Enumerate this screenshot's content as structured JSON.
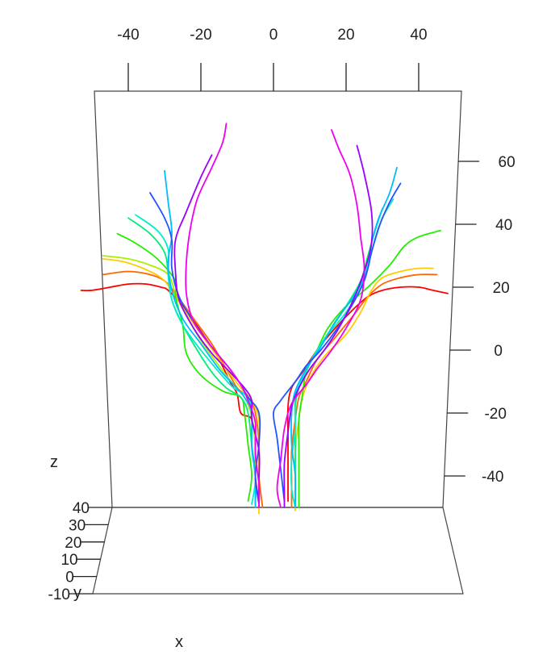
{
  "chart_data": {
    "type": "line",
    "title": "",
    "x_axis": {
      "label": "x",
      "ticks": [
        -40,
        -20,
        0,
        20,
        40
      ],
      "tick_labels": [
        "-40",
        "-20",
        "0",
        "20",
        "40"
      ]
    },
    "y_axis": {
      "label": "y",
      "ticks": [
        -10,
        0,
        10,
        20,
        30,
        40
      ],
      "tick_labels": [
        "-10",
        "0",
        "10",
        "20",
        "30",
        "40"
      ]
    },
    "z_axis": {
      "label": "z",
      "ticks": [
        -40,
        -20,
        0,
        20,
        40,
        60
      ],
      "tick_labels": [
        "-40",
        "-20",
        "0",
        "20",
        "40",
        "60"
      ]
    },
    "grid": false,
    "legend": "none",
    "series": [
      {
        "color": "#ff0000",
        "points": [
          [
            -53,
            19
          ],
          [
            -50,
            19
          ],
          [
            -45,
            20
          ],
          [
            -40,
            21
          ],
          [
            -35,
            21
          ],
          [
            -31,
            20
          ],
          [
            -29,
            19
          ],
          [
            -25,
            14
          ],
          [
            -20,
            6
          ],
          [
            -15,
            -3
          ],
          [
            -12,
            -10
          ],
          [
            -10,
            -14
          ],
          [
            -9,
            -20
          ],
          [
            -6,
            -22
          ],
          [
            -5,
            -30
          ],
          [
            -5,
            -40
          ],
          [
            -4,
            -48
          ]
        ]
      },
      {
        "color": "#ff6600",
        "points": [
          [
            -47,
            24
          ],
          [
            -40,
            25
          ],
          [
            -34,
            24
          ],
          [
            -30,
            22
          ],
          [
            -27,
            18
          ],
          [
            -22,
            10
          ],
          [
            -17,
            2
          ],
          [
            -13,
            -6
          ],
          [
            -10,
            -12
          ],
          [
            -7,
            -15
          ],
          [
            -5,
            -20
          ],
          [
            -4,
            -30
          ],
          [
            -4,
            -40
          ],
          [
            -3,
            -50
          ]
        ]
      },
      {
        "color": "#ffcc00",
        "points": [
          [
            -47,
            29
          ],
          [
            -41,
            28
          ],
          [
            -34,
            25
          ],
          [
            -30,
            22
          ],
          [
            -27,
            17
          ],
          [
            -23,
            10
          ],
          [
            -18,
            2
          ],
          [
            -13,
            -6
          ],
          [
            -9,
            -12
          ],
          [
            -6,
            -16
          ],
          [
            -4,
            -22
          ],
          [
            -4,
            -32
          ],
          [
            -4,
            -42
          ],
          [
            -4,
            -52
          ]
        ]
      },
      {
        "color": "#aaee00",
        "points": [
          [
            -47,
            30
          ],
          [
            -40,
            29
          ],
          [
            -34,
            27
          ],
          [
            -29,
            24
          ],
          [
            -27,
            18
          ],
          [
            -24,
            11
          ],
          [
            -20,
            3
          ],
          [
            -15,
            -5
          ],
          [
            -11,
            -11
          ],
          [
            -8,
            -15
          ],
          [
            -6,
            -21
          ],
          [
            -5,
            -31
          ],
          [
            -5,
            -41
          ],
          [
            -5,
            -50
          ]
        ]
      },
      {
        "color": "#22ee00",
        "points": [
          [
            -43,
            37
          ],
          [
            -38,
            34
          ],
          [
            -32,
            29
          ],
          [
            -27,
            22
          ],
          [
            -27,
            17
          ],
          [
            -25,
            8
          ],
          [
            -24,
            -1
          ],
          [
            -20,
            -8
          ],
          [
            -14,
            -13
          ],
          [
            -9,
            -15
          ],
          [
            -8,
            -20
          ],
          [
            -7,
            -30
          ],
          [
            -6,
            -40
          ],
          [
            -7,
            -48
          ]
        ]
      },
      {
        "color": "#00ee77",
        "points": [
          [
            -40,
            42
          ],
          [
            -34,
            37
          ],
          [
            -30,
            31
          ],
          [
            -29,
            24
          ],
          [
            -28,
            16
          ],
          [
            -25,
            8
          ],
          [
            -21,
            0
          ],
          [
            -17,
            -7
          ],
          [
            -13,
            -12
          ],
          [
            -9,
            -15
          ],
          [
            -7,
            -20
          ],
          [
            -6,
            -30
          ],
          [
            -5,
            -40
          ],
          [
            -5,
            -49
          ]
        ]
      },
      {
        "color": "#00eecc",
        "points": [
          [
            -38,
            43
          ],
          [
            -32,
            38
          ],
          [
            -29,
            32
          ],
          [
            -29,
            24
          ],
          [
            -28,
            16
          ],
          [
            -25,
            8
          ],
          [
            -20,
            0
          ],
          [
            -15,
            -7
          ],
          [
            -11,
            -12
          ],
          [
            -7,
            -15
          ],
          [
            -6,
            -21
          ],
          [
            -6,
            -31
          ],
          [
            -5,
            -41
          ],
          [
            -6,
            -49
          ]
        ]
      },
      {
        "color": "#00bbff",
        "points": [
          [
            -30,
            57
          ],
          [
            -29,
            47
          ],
          [
            -28,
            37
          ],
          [
            -29,
            28
          ],
          [
            -28,
            19
          ],
          [
            -25,
            10
          ],
          [
            -20,
            2
          ],
          [
            -15,
            -6
          ],
          [
            -11,
            -11
          ],
          [
            -8,
            -15
          ],
          [
            -6,
            -20
          ],
          [
            -6,
            -30
          ],
          [
            -5,
            -40
          ],
          [
            -5,
            -50
          ]
        ]
      },
      {
        "color": "#2255ff",
        "points": [
          [
            -34,
            50
          ],
          [
            -30,
            42
          ],
          [
            -28,
            35
          ],
          [
            -28,
            26
          ],
          [
            -26,
            17
          ],
          [
            -22,
            9
          ],
          [
            -17,
            1
          ],
          [
            -12,
            -6
          ],
          [
            -9,
            -11
          ],
          [
            -7,
            -15
          ],
          [
            -4,
            -20
          ],
          [
            -4,
            -30
          ],
          [
            -5,
            -40
          ],
          [
            -4,
            -49
          ]
        ]
      },
      {
        "color": "#9900ff",
        "points": [
          [
            -17,
            62
          ],
          [
            -20,
            55
          ],
          [
            -24,
            44
          ],
          [
            -27,
            35
          ],
          [
            -27,
            25
          ],
          [
            -26,
            16
          ],
          [
            -22,
            7
          ],
          [
            -17,
            -1
          ],
          [
            -12,
            -7
          ],
          [
            -8,
            -12
          ],
          [
            -6,
            -16
          ],
          [
            -6,
            -22
          ],
          [
            -4,
            -32
          ],
          [
            -4,
            -42
          ],
          [
            -4,
            -50
          ]
        ]
      },
      {
        "color": "#ee00ee",
        "points": [
          [
            -13,
            72
          ],
          [
            -14,
            66
          ],
          [
            -17,
            58
          ],
          [
            -21,
            48
          ],
          [
            -23,
            38
          ],
          [
            -24,
            28
          ],
          [
            -24,
            18
          ],
          [
            -22,
            9
          ],
          [
            -17,
            1
          ],
          [
            -12,
            -6
          ],
          [
            -9,
            -11
          ],
          [
            -7,
            -16
          ],
          [
            -5,
            -23
          ],
          [
            -5,
            -33
          ],
          [
            -4,
            -43
          ],
          [
            -4,
            -50
          ]
        ]
      },
      {
        "color": "#ff0000",
        "points": [
          [
            48,
            18
          ],
          [
            44,
            19
          ],
          [
            40,
            20
          ],
          [
            35,
            20
          ],
          [
            30,
            19
          ],
          [
            26,
            17
          ],
          [
            22,
            13
          ],
          [
            17,
            7
          ],
          [
            12,
            0
          ],
          [
            8,
            -7
          ],
          [
            5,
            -12
          ],
          [
            4,
            -18
          ],
          [
            4,
            -28
          ],
          [
            4,
            -38
          ],
          [
            4,
            -48
          ]
        ]
      },
      {
        "color": "#ff6600",
        "points": [
          [
            45,
            24
          ],
          [
            40,
            24
          ],
          [
            35,
            23
          ],
          [
            30,
            21
          ],
          [
            26,
            17
          ],
          [
            22,
            11
          ],
          [
            17,
            4
          ],
          [
            12,
            -3
          ],
          [
            9,
            -10
          ],
          [
            7,
            -15
          ],
          [
            6,
            -22
          ],
          [
            5,
            -32
          ],
          [
            5,
            -42
          ],
          [
            5,
            -50
          ]
        ]
      },
      {
        "color": "#ffcc00",
        "points": [
          [
            44,
            26
          ],
          [
            40,
            26
          ],
          [
            35,
            25
          ],
          [
            30,
            23
          ],
          [
            27,
            19
          ],
          [
            24,
            12
          ],
          [
            20,
            5
          ],
          [
            14,
            -2
          ],
          [
            10,
            -9
          ],
          [
            8,
            -15
          ],
          [
            7,
            -22
          ],
          [
            6,
            -32
          ],
          [
            6,
            -42
          ],
          [
            6,
            -51
          ]
        ]
      },
      {
        "color": "#22ee00",
        "points": [
          [
            46,
            38
          ],
          [
            40,
            36
          ],
          [
            36,
            33
          ],
          [
            32,
            27
          ],
          [
            26,
            20
          ],
          [
            20,
            14
          ],
          [
            15,
            7
          ],
          [
            12,
            0
          ],
          [
            9,
            -7
          ],
          [
            8,
            -14
          ],
          [
            7,
            -22
          ],
          [
            7,
            -32
          ],
          [
            7,
            -42
          ],
          [
            7,
            -50
          ]
        ]
      },
      {
        "color": "#00ee77",
        "points": [
          [
            30,
            45
          ],
          [
            28,
            38
          ],
          [
            26,
            30
          ],
          [
            24,
            22
          ],
          [
            20,
            14
          ],
          [
            16,
            7
          ],
          [
            12,
            0
          ],
          [
            9,
            -6
          ],
          [
            7,
            -12
          ],
          [
            6,
            -18
          ],
          [
            6,
            -28
          ],
          [
            6,
            -38
          ],
          [
            6,
            -48
          ]
        ]
      },
      {
        "color": "#00eecc",
        "points": [
          [
            33,
            48
          ],
          [
            30,
            42
          ],
          [
            28,
            35
          ],
          [
            26,
            28
          ],
          [
            24,
            20
          ],
          [
            20,
            12
          ],
          [
            15,
            5
          ],
          [
            11,
            -2
          ],
          [
            8,
            -9
          ],
          [
            6,
            -15
          ],
          [
            6,
            -25
          ],
          [
            5,
            -35
          ],
          [
            5,
            -44
          ],
          [
            6,
            -50
          ]
        ]
      },
      {
        "color": "#00bbff",
        "points": [
          [
            34,
            58
          ],
          [
            32,
            50
          ],
          [
            29,
            42
          ],
          [
            27,
            34
          ],
          [
            26,
            26
          ],
          [
            22,
            17
          ],
          [
            17,
            9
          ],
          [
            13,
            1
          ],
          [
            9,
            -6
          ],
          [
            6,
            -13
          ],
          [
            5,
            -20
          ],
          [
            5,
            -30
          ],
          [
            6,
            -40
          ],
          [
            6,
            -50
          ]
        ]
      },
      {
        "color": "#2255ff",
        "points": [
          [
            35,
            53
          ],
          [
            32,
            47
          ],
          [
            29,
            39
          ],
          [
            27,
            31
          ],
          [
            25,
            22
          ],
          [
            21,
            13
          ],
          [
            17,
            6
          ],
          [
            13,
            0
          ],
          [
            9,
            -5
          ],
          [
            6,
            -10
          ],
          [
            2,
            -16
          ],
          [
            0,
            -20
          ],
          [
            1,
            -28
          ],
          [
            2,
            -38
          ],
          [
            3,
            -48
          ]
        ]
      },
      {
        "color": "#9900ff",
        "points": [
          [
            23,
            65
          ],
          [
            25,
            56
          ],
          [
            27,
            44
          ],
          [
            27,
            34
          ],
          [
            25,
            25
          ],
          [
            22,
            16
          ],
          [
            18,
            7
          ],
          [
            14,
            0
          ],
          [
            10,
            -6
          ],
          [
            7,
            -12
          ],
          [
            5,
            -18
          ],
          [
            4,
            -26
          ],
          [
            3,
            -36
          ],
          [
            3,
            -45
          ],
          [
            3,
            -50
          ]
        ]
      },
      {
        "color": "#ee00ee",
        "points": [
          [
            16,
            70
          ],
          [
            18,
            64
          ],
          [
            21,
            56
          ],
          [
            23,
            46
          ],
          [
            24,
            36
          ],
          [
            25,
            26
          ],
          [
            24,
            16
          ],
          [
            20,
            7
          ],
          [
            16,
            0
          ],
          [
            12,
            -6
          ],
          [
            9,
            -11
          ],
          [
            5,
            -17
          ],
          [
            3,
            -25
          ],
          [
            2,
            -35
          ],
          [
            1,
            -44
          ],
          [
            2,
            -50
          ]
        ]
      }
    ]
  }
}
